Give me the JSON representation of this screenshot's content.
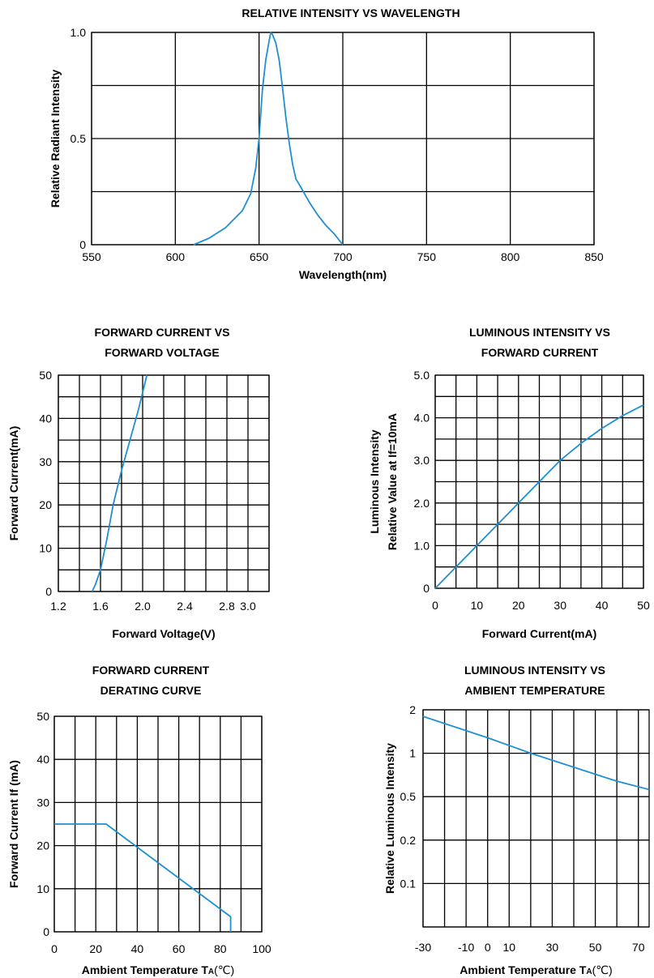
{
  "style": {
    "curve_color": "#1e8fd0",
    "grid_color": "#000000"
  },
  "chart_data": [
    {
      "id": "spectrum",
      "type": "line",
      "title": [
        "RELATIVE INTENSITY VS WAVELENGTH"
      ],
      "xlabel": "Wavelength(nm)",
      "ylabel": [
        "Relative Radiant Intensity"
      ],
      "xlim": [
        550,
        850
      ],
      "ylim": [
        0,
        1.0
      ],
      "xticks": [
        550,
        600,
        650,
        700,
        750,
        800,
        850
      ],
      "xtick_labels": [
        "550",
        "600",
        "650",
        "700",
        "750",
        "800",
        "850"
      ],
      "yticks": [
        0,
        0.5,
        1.0
      ],
      "ytick_labels": [
        "0",
        "0.5",
        "1.0"
      ],
      "ygrid": [
        0,
        0.25,
        0.5,
        0.75,
        1.0
      ],
      "grid": true,
      "series": [
        {
          "x": [
            611,
            620,
            630,
            640,
            645,
            648,
            650,
            652,
            654,
            656,
            657,
            658,
            660,
            662,
            664,
            666,
            668,
            670,
            672,
            675,
            680,
            685,
            690,
            695,
            698,
            700
          ],
          "y": [
            0,
            0.03,
            0.08,
            0.16,
            0.24,
            0.36,
            0.5,
            0.73,
            0.87,
            0.96,
            1.0,
            0.99,
            0.95,
            0.87,
            0.74,
            0.6,
            0.48,
            0.38,
            0.31,
            0.27,
            0.2,
            0.14,
            0.09,
            0.05,
            0.02,
            0
          ]
        }
      ]
    },
    {
      "id": "if-vf",
      "type": "line",
      "title": [
        "FORWARD CURRENT VS",
        "FORWARD VOLTAGE"
      ],
      "xlabel": "Forward Voltage(V)",
      "ylabel": [
        "Forward Current(mA)"
      ],
      "xlim": [
        1.2,
        3.2
      ],
      "ylim": [
        0,
        50
      ],
      "xticks": [
        1.2,
        1.6,
        2.0,
        2.4,
        2.8,
        3.0
      ],
      "xtick_labels": [
        "1.2",
        "1.6",
        "2.0",
        "2.4",
        "2.8",
        "3.0"
      ],
      "yticks": [
        0,
        10,
        20,
        30,
        40,
        50
      ],
      "ytick_labels": [
        "0",
        "10",
        "20",
        "30",
        "40",
        "50"
      ],
      "xgrid": [
        1.2,
        1.4,
        1.6,
        1.8,
        2.0,
        2.2,
        2.4,
        2.6,
        2.8,
        3.0,
        3.2
      ],
      "ygrid": [
        0,
        5,
        10,
        15,
        20,
        25,
        30,
        35,
        40,
        45,
        50
      ],
      "grid": true,
      "series": [
        {
          "x": [
            1.52,
            1.55,
            1.6,
            1.66,
            1.72,
            1.8,
            1.88,
            1.96,
            2.04
          ],
          "y": [
            0,
            1.5,
            5,
            12,
            20,
            28,
            35,
            42,
            50
          ]
        }
      ]
    },
    {
      "id": "iv-if",
      "type": "line",
      "title": [
        "LUMINOUS INTENSITY  VS",
        "FORWARD CURRENT"
      ],
      "xlabel": "Forward Current(mA)",
      "ylabel": [
        "Luminous Intensity",
        "Relative Value at If=10mA"
      ],
      "xlim": [
        0,
        50
      ],
      "ylim": [
        0,
        5.0
      ],
      "xticks": [
        0,
        10,
        20,
        30,
        40,
        50
      ],
      "xtick_labels": [
        "0",
        "10",
        "20",
        "30",
        "40",
        "50"
      ],
      "yticks": [
        0,
        1.0,
        2.0,
        3.0,
        4.0,
        5.0
      ],
      "ytick_labels": [
        "0",
        "1.0",
        "2.0",
        "3.0",
        "4.0",
        "5.0"
      ],
      "xgrid": [
        0,
        5,
        10,
        15,
        20,
        25,
        30,
        35,
        40,
        45,
        50
      ],
      "ygrid": [
        0,
        0.5,
        1.0,
        1.5,
        2.0,
        2.5,
        3.0,
        3.5,
        4.0,
        4.5,
        5.0
      ],
      "grid": true,
      "series": [
        {
          "x": [
            0,
            5,
            10,
            15,
            20,
            25,
            30,
            35,
            40,
            45,
            50
          ],
          "y": [
            0,
            0.5,
            1.0,
            1.5,
            2.0,
            2.5,
            3.0,
            3.4,
            3.75,
            4.05,
            4.3
          ]
        }
      ]
    },
    {
      "id": "derating",
      "type": "line",
      "title": [
        "FORWARD CURRENT",
        "DERATING CURVE"
      ],
      "xlabel": "Ambient Temperature T",
      "xlabel_sub": "A",
      "xlabel_unit": "(℃)",
      "ylabel": [
        "Forward Current  If (mA)"
      ],
      "xlim": [
        0,
        100
      ],
      "ylim": [
        0,
        50
      ],
      "xticks": [
        0,
        20,
        40,
        60,
        80,
        100
      ],
      "xtick_labels": [
        "0",
        "20",
        "40",
        "60",
        "80",
        "100"
      ],
      "yticks": [
        0,
        10,
        20,
        30,
        40,
        50
      ],
      "ytick_labels": [
        "0",
        "10",
        "20",
        "30",
        "40",
        "50"
      ],
      "xgrid": [
        0,
        10,
        20,
        30,
        40,
        50,
        60,
        70,
        80,
        90,
        100
      ],
      "ygrid": [
        0,
        10,
        20,
        30,
        40,
        50
      ],
      "grid": true,
      "series": [
        {
          "x": [
            0,
            25,
            85,
            85
          ],
          "y": [
            25,
            25,
            3.5,
            0
          ]
        }
      ]
    },
    {
      "id": "iv-ta",
      "type": "line",
      "title": [
        "LUMINOUS INTENSITY VS",
        "AMBIENT TEMPERATURE"
      ],
      "xlabel": "Ambient Temperature T",
      "xlabel_sub": "A",
      "xlabel_unit": "(℃)",
      "ylabel": [
        "Relative Luminous Intensity"
      ],
      "xlim": [
        -30,
        75
      ],
      "yscale": "log",
      "xticks": [
        -30,
        -10,
        0,
        10,
        30,
        50,
        70
      ],
      "xtick_labels": [
        "-30",
        "-10",
        "0",
        "10",
        "30",
        "50",
        "70"
      ],
      "yticks": [
        0.1,
        0.2,
        0.5,
        1,
        2
      ],
      "ytick_labels": [
        "0.1",
        "0.2",
        "0.5",
        "1",
        "2"
      ],
      "xgrid": [
        -30,
        -20,
        -10,
        0,
        10,
        20,
        30,
        40,
        50,
        60,
        70
      ],
      "ygrid_pos": [
        0,
        0.2,
        0.4,
        0.6,
        0.8,
        1.0
      ],
      "grid": true,
      "series": [
        {
          "x": [
            -30,
            0,
            20,
            40,
            60,
            75
          ],
          "y": [
            1.8,
            1.28,
            1.0,
            0.8,
            0.64,
            0.56
          ]
        }
      ]
    }
  ]
}
